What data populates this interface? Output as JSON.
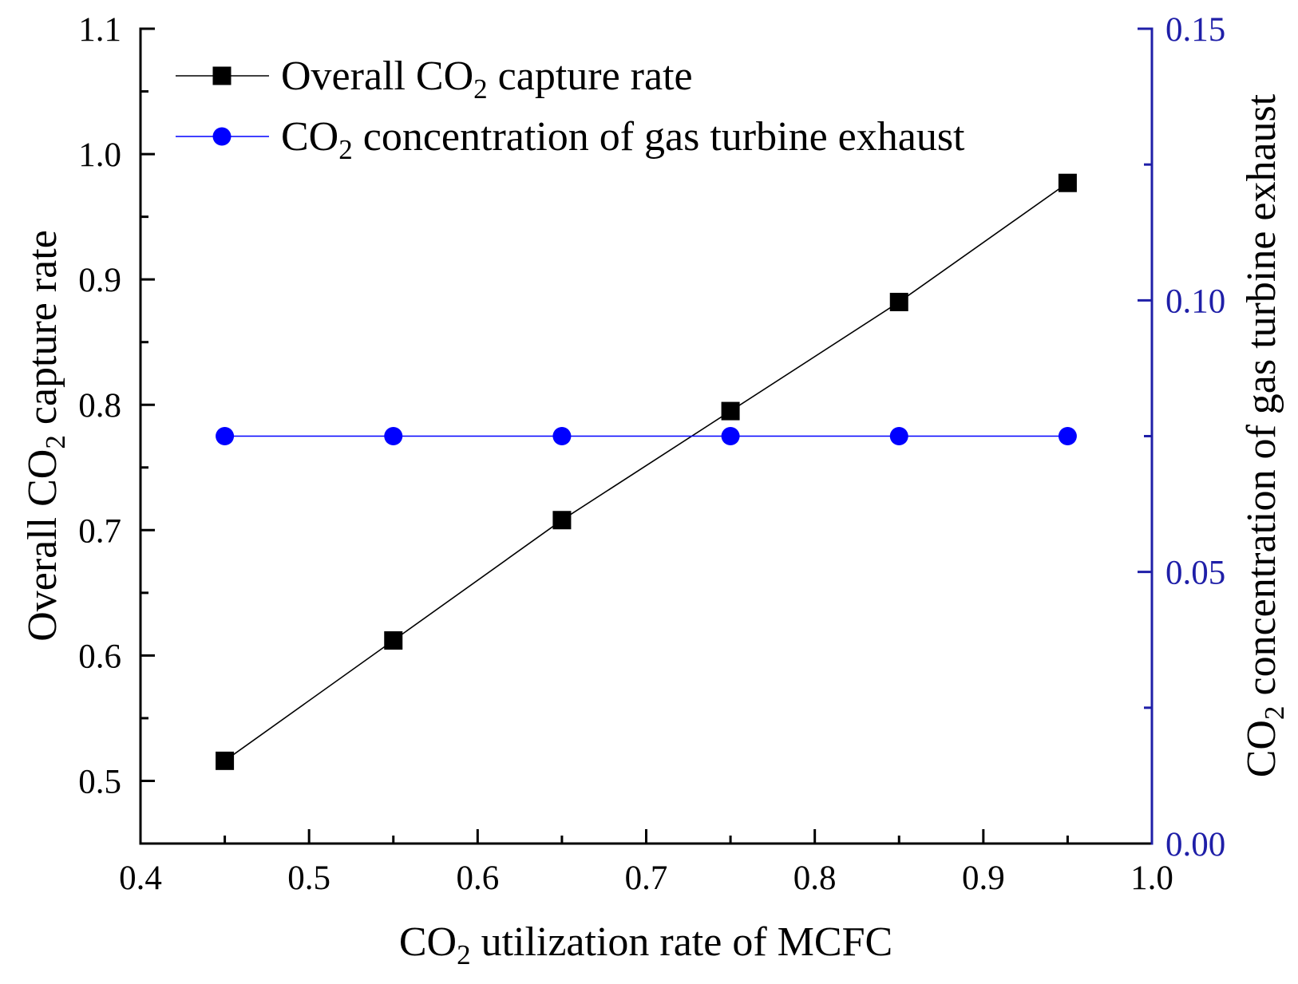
{
  "chart_data": {
    "type": "line",
    "xlabel": "CO2 utilization rate of MCFC",
    "xlim": [
      0.4,
      1.0
    ],
    "x_tick_labels": [
      "0.4",
      "0.5",
      "0.6",
      "0.7",
      "0.8",
      "0.9",
      "1.0"
    ],
    "x": [
      0.45,
      0.55,
      0.65,
      0.75,
      0.85,
      0.95
    ],
    "y_left": {
      "label": "Overall CO2 capture rate",
      "ylim": [
        0.45,
        1.1
      ],
      "tick_labels": [
        "0.5",
        "0.6",
        "0.7",
        "0.8",
        "0.9",
        "1.0",
        "1.1"
      ],
      "color": "#000000"
    },
    "y_right": {
      "label": "CO2 concentration of gas turbine exhaust",
      "ylim": [
        0.0,
        0.15
      ],
      "tick_labels": [
        "0.00",
        "0.05",
        "0.10",
        "0.15"
      ],
      "color": "#1f1fa8"
    },
    "series": [
      {
        "name": "Overall CO2 capture rate",
        "axis": "left",
        "marker": "square",
        "color": "#000000",
        "values": [
          0.516,
          0.612,
          0.708,
          0.795,
          0.882,
          0.977
        ]
      },
      {
        "name": "CO2 concentration of gas turbine exhaust",
        "axis": "right",
        "marker": "circle",
        "color": "#0000ff",
        "values": [
          0.075,
          0.075,
          0.075,
          0.075,
          0.075,
          0.075
        ]
      }
    ],
    "legend": "top-left",
    "grid": false
  }
}
